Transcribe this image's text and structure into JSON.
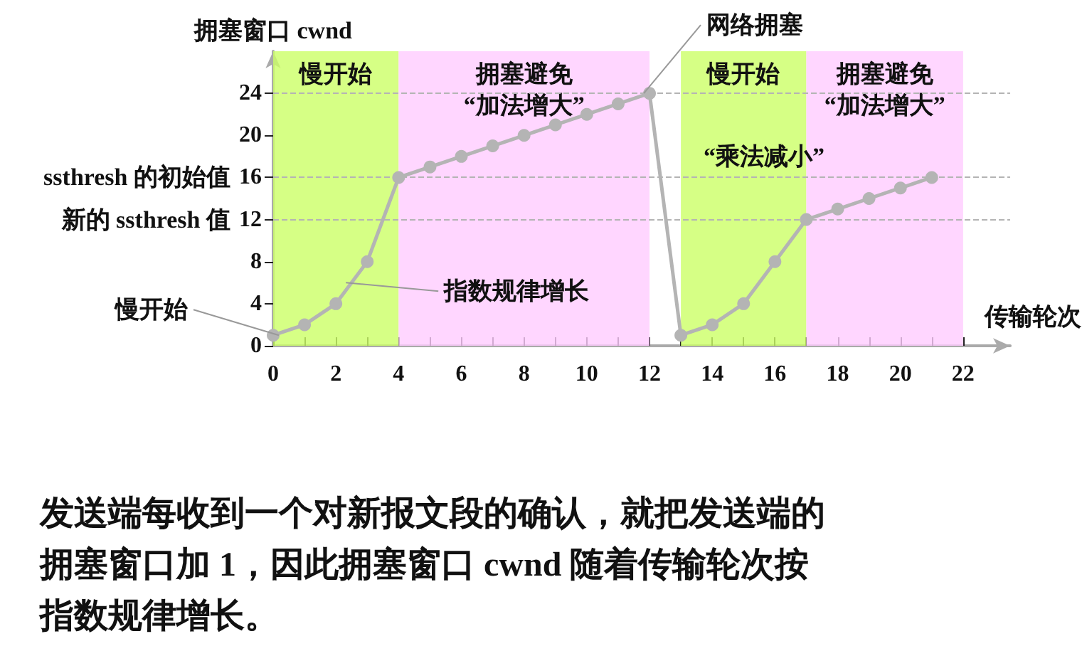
{
  "chart_data": {
    "type": "line",
    "xlabel": "传输轮次",
    "ylabel": "拥塞窗口 cwnd",
    "series": [
      {
        "color": "#b4b4b4",
        "x": [
          0,
          1,
          2,
          3,
          4,
          5,
          6,
          7,
          8,
          9,
          10,
          11,
          12,
          13,
          14,
          15,
          16,
          17,
          18,
          19,
          20,
          21
        ],
        "values": [
          1,
          2,
          4,
          8,
          16,
          17,
          18,
          19,
          20,
          21,
          22,
          23,
          24,
          1,
          2,
          4,
          8,
          12,
          13,
          14,
          15,
          16
        ]
      }
    ],
    "xlim": [
      0,
      23.5
    ],
    "xticks": [
      0,
      {
        "value": 1,
        "label": null
      },
      2,
      {
        "value": 3,
        "label": null
      },
      4,
      {
        "value": 5,
        "label": null
      },
      6,
      {
        "value": 7,
        "label": null
      },
      8,
      {
        "value": 9,
        "label": null
      },
      10,
      {
        "value": 11,
        "label": null
      },
      12,
      {
        "value": 13,
        "label": null
      },
      14,
      {
        "value": 15,
        "label": null
      },
      16,
      {
        "value": 17,
        "label": null
      },
      18,
      {
        "value": 19,
        "label": null
      },
      20,
      {
        "value": 21,
        "label": null
      },
      22
    ],
    "ylim": [
      0,
      28
    ],
    "yticks": [
      0,
      4,
      8,
      12,
      16,
      20,
      24
    ],
    "marker": "circle",
    "line_style": "solid",
    "grid": false,
    "ref_lines": [
      {
        "axis": "y",
        "value": 24,
        "label": null,
        "color": "#b4b4b4",
        "line_style": "dashed"
      },
      {
        "axis": "y",
        "value": 16,
        "label": "ssthresh 的初始值",
        "color": "#b4b4b4",
        "line_style": "dashed"
      },
      {
        "axis": "y",
        "value": 12,
        "label": "新的 ssthresh 值",
        "color": "#b4b4b4",
        "line_style": "dashed"
      }
    ],
    "bands": [
      {
        "axis": "x",
        "from": 0,
        "to": 4,
        "label": "慢开始",
        "color": "#ccff66"
      },
      {
        "axis": "x",
        "from": 4,
        "to": 12,
        "label": "拥塞避免\n“加法增大”",
        "color": "#ffccff"
      },
      {
        "axis": "x",
        "from": 13,
        "to": 17,
        "label": "慢开始",
        "color": "#ccff66"
      },
      {
        "axis": "x",
        "from": 17,
        "to": 22,
        "label": "拥塞避免\n“加法增大”",
        "color": "#ffccff"
      }
    ],
    "annotations": [
      {
        "text": "慢开始",
        "x": 0,
        "y": 1
      },
      {
        "text": "指数规律增长",
        "x": 2.5,
        "y": 6
      },
      {
        "text": "网络拥塞",
        "x": 12,
        "y": 24
      },
      {
        "text": "“乘法减小”",
        "x": 13,
        "y": 18
      },
      "发送端每收到一个对新报文段的确认，就把发送端的",
      "拥塞窗口加 1，因此拥塞窗口 cwnd 随着传输轮次按",
      "指数规律增长。"
    ]
  }
}
